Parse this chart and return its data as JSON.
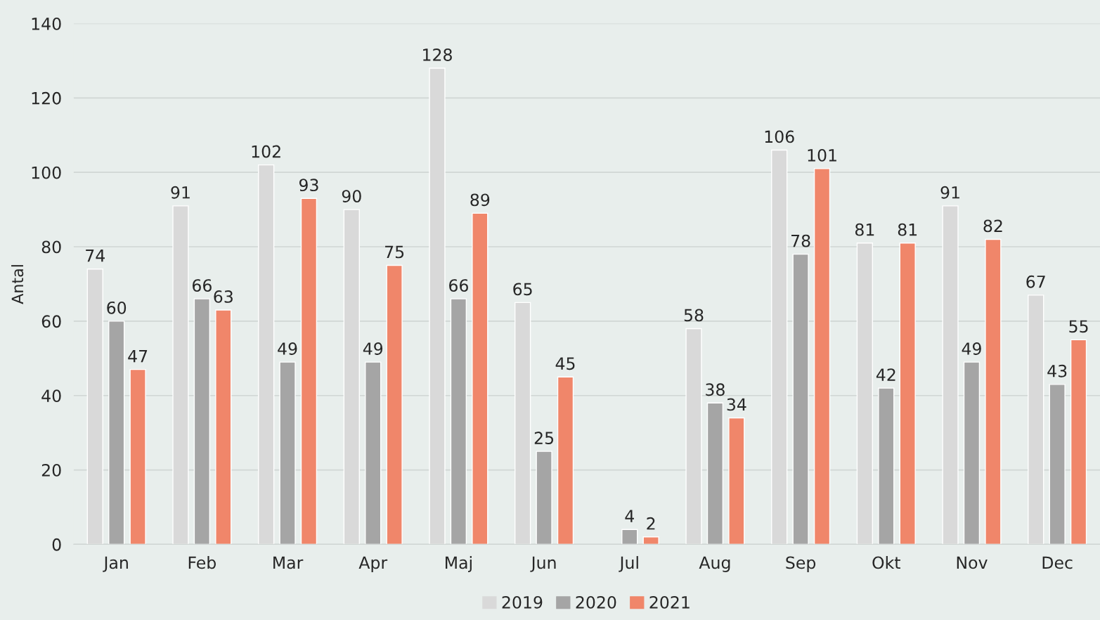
{
  "chart_data": {
    "type": "bar",
    "ylabel": "Antal",
    "categories": [
      "Jan",
      "Feb",
      "Mar",
      "Apr",
      "Maj",
      "Jun",
      "Jul",
      "Aug",
      "Sep",
      "Okt",
      "Nov",
      "Dec"
    ],
    "series": [
      {
        "name": "2019",
        "color": "#d9d9d9",
        "values": [
          74,
          91,
          102,
          90,
          128,
          65,
          null,
          58,
          106,
          81,
          91,
          67
        ]
      },
      {
        "name": "2020",
        "color": "#a5a5a5",
        "values": [
          60,
          66,
          49,
          49,
          66,
          25,
          4,
          38,
          78,
          42,
          49,
          43
        ]
      },
      {
        "name": "2021",
        "color": "#f0866a",
        "values": [
          47,
          63,
          93,
          75,
          89,
          45,
          2,
          34,
          101,
          81,
          82,
          55
        ]
      }
    ],
    "ylim": [
      0,
      140
    ],
    "yticks": [
      0,
      20,
      40,
      60,
      80,
      100,
      120,
      140
    ],
    "grid": "y",
    "legend": "bottom",
    "data_labels": true
  }
}
